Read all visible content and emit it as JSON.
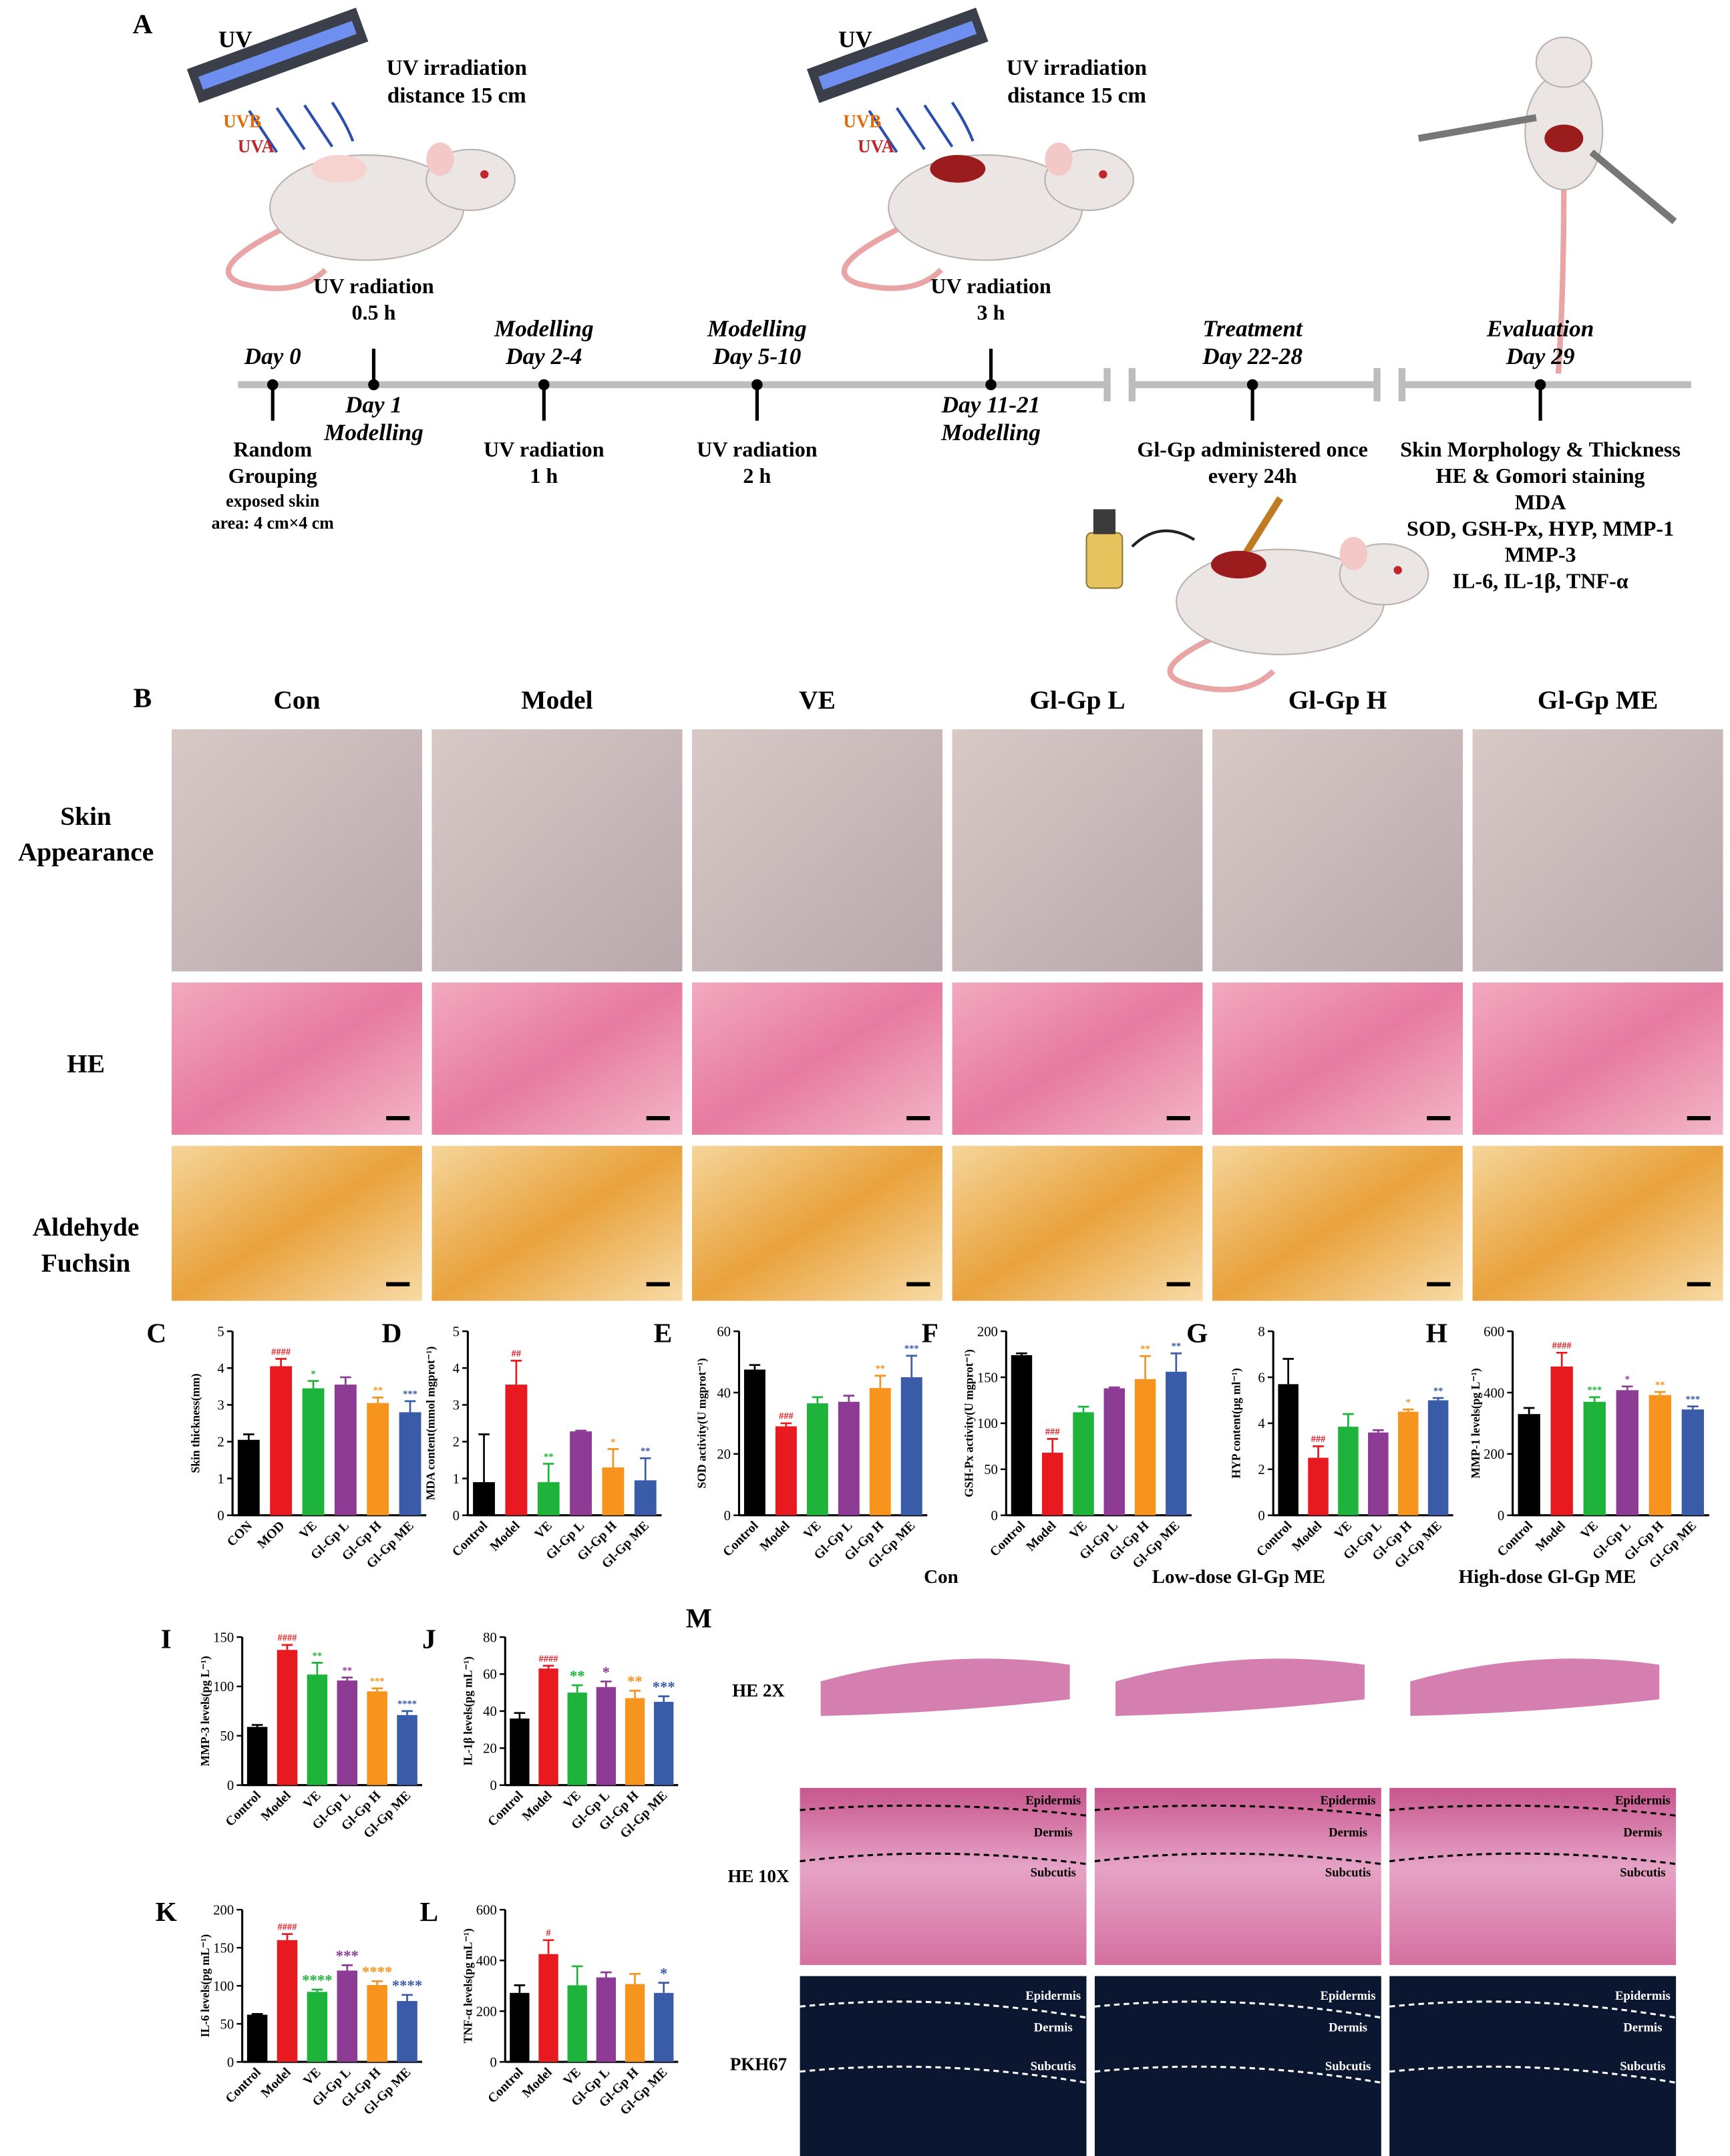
{
  "panel_a": {
    "label": "A",
    "lamps": [
      {
        "name": "UV",
        "bands": [
          "UVB",
          "UVA"
        ],
        "note": [
          "UV irradiation",
          "distance 15 cm"
        ]
      },
      {
        "name": "UV",
        "bands": [
          "UVB",
          "UVA"
        ],
        "note": [
          "UV irradiation",
          "distance 15 cm"
        ]
      }
    ],
    "events": [
      {
        "phase": [
          "Day 0"
        ],
        "detail": [
          "Random",
          "Grouping"
        ],
        "note": [
          "exposed skin",
          "area: 4 cm×4 cm"
        ]
      },
      {
        "phase": [
          "Day 1",
          "Modelling"
        ],
        "detail": [
          "UV radiation",
          "0.5 h"
        ]
      },
      {
        "phase": [
          "Modelling",
          "Day 2-4"
        ],
        "detail": [
          "UV radiation",
          "1 h"
        ]
      },
      {
        "phase": [
          "Modelling",
          "Day 5-10"
        ],
        "detail": [
          "UV radiation",
          "2 h"
        ]
      },
      {
        "phase": [
          "Day 11-21",
          "Modelling"
        ],
        "detail": [
          "UV radiation",
          "3 h"
        ]
      },
      {
        "phase": [
          "Treatment",
          "Day 22-28"
        ],
        "detail": [
          "Gl-Gp administered once",
          "every 24h"
        ]
      },
      {
        "phase": [
          "Evaluation",
          "Day 29"
        ],
        "detail": [
          "Skin Morphology & Thickness",
          "HE & Gomori staining",
          "MDA",
          "SOD, GSH-Px, HYP, MMP-1",
          "MMP-3",
          "IL-6, IL-1β, TNF-α"
        ]
      }
    ]
  },
  "panel_b": {
    "label": "B",
    "groups": [
      "Con",
      "Model",
      "VE",
      "Gl-Gp L",
      "Gl-Gp H",
      "Gl-Gp ME"
    ],
    "rows": [
      [
        "Skin",
        "Appearance"
      ],
      [
        "HE"
      ],
      [
        "Aldehyde",
        "Fuchsin"
      ]
    ]
  },
  "panel_m": {
    "label": "M",
    "columns": [
      "Con",
      "Low-dose Gl-Gp ME",
      "High-dose Gl-Gp ME"
    ],
    "rows": [
      "HE 2X",
      "HE 10X",
      "PKH67"
    ],
    "layers": [
      "Epidermis",
      "Dermis",
      "Subcutis"
    ]
  },
  "chart_data": [
    {
      "type": "bar",
      "label": "C",
      "ylabel": "Skin thickness(mm)",
      "categories": [
        "CON",
        "MOD",
        "VE",
        "Gl-Gp L",
        "Gl-Gp H",
        "Gl-Gp ME"
      ],
      "values": [
        2.05,
        4.05,
        3.45,
        3.55,
        3.05,
        2.8
      ],
      "errors": [
        0.15,
        0.2,
        0.2,
        0.2,
        0.15,
        0.3
      ],
      "annotations": [
        null,
        "####",
        "*",
        null,
        "**",
        "***"
      ],
      "colors": [
        "#000000",
        "#e8191f",
        "#1eb33a",
        "#8e3b96",
        "#f7941d",
        "#3a5ba8"
      ],
      "ylim": [
        0,
        5
      ],
      "yticks": [
        0,
        1,
        2,
        3,
        4,
        5
      ]
    },
    {
      "type": "bar",
      "label": "D",
      "ylabel": "MDA content(mmol mgprot⁻¹)",
      "categories": [
        "Control",
        "Model",
        "VE",
        "Gl-Gp L",
        "Gl-Gp H",
        "Gl-Gp ME"
      ],
      "values": [
        0.9,
        3.55,
        0.9,
        2.28,
        1.3,
        0.95
      ],
      "errors": [
        1.3,
        0.65,
        0.5,
        0.02,
        0.5,
        0.6
      ],
      "annotations": [
        null,
        "##",
        "**",
        null,
        "*",
        "**"
      ],
      "colors": [
        "#000000",
        "#e8191f",
        "#1eb33a",
        "#8e3b96",
        "#f7941d",
        "#3a5ba8"
      ],
      "ylim": [
        0,
        5
      ],
      "yticks": [
        0,
        1,
        2,
        3,
        4,
        5
      ]
    },
    {
      "type": "bar",
      "label": "E",
      "ylabel": "SOD activity(U mgprot⁻¹)",
      "categories": [
        "Control",
        "Model",
        "VE",
        "Gl-Gp L",
        "Gl-Gp H",
        "Gl-Gp ME"
      ],
      "values": [
        47.5,
        29,
        36.5,
        37,
        41.5,
        45
      ],
      "errors": [
        1.5,
        1,
        2,
        2,
        4,
        7
      ],
      "annotations": [
        null,
        "###",
        null,
        null,
        "**",
        "***"
      ],
      "colors": [
        "#000000",
        "#e8191f",
        "#1eb33a",
        "#8e3b96",
        "#f7941d",
        "#3a5ba8"
      ],
      "ylim": [
        0,
        60
      ],
      "yticks": [
        0,
        20,
        40,
        60
      ]
    },
    {
      "type": "bar",
      "label": "F",
      "ylabel": "GSH-Px activity(U mgprot⁻¹)",
      "categories": [
        "Control",
        "Model",
        "VE",
        "Gl-Gp L",
        "Gl-Gp H",
        "Gl-Gp ME"
      ],
      "values": [
        174,
        68,
        112,
        138,
        148,
        156
      ],
      "errors": [
        2,
        15,
        6,
        1,
        25,
        20
      ],
      "annotations": [
        null,
        "###",
        null,
        null,
        "**",
        "**"
      ],
      "colors": [
        "#000000",
        "#e8191f",
        "#1eb33a",
        "#8e3b96",
        "#f7941d",
        "#3a5ba8"
      ],
      "ylim": [
        0,
        200
      ],
      "yticks": [
        0,
        50,
        100,
        150,
        200
      ]
    },
    {
      "type": "bar",
      "label": "G",
      "ylabel": "HYP content(μg ml⁻¹)",
      "categories": [
        "Control",
        "Model",
        "VE",
        "Gl-Gp L",
        "Gl-Gp H",
        "Gl-Gp ME"
      ],
      "values": [
        5.7,
        2.5,
        3.85,
        3.6,
        4.5,
        5.0
      ],
      "errors": [
        1.1,
        0.5,
        0.55,
        0.1,
        0.1,
        0.1
      ],
      "annotations": [
        null,
        "###",
        null,
        null,
        "*",
        "**"
      ],
      "colors": [
        "#000000",
        "#e8191f",
        "#1eb33a",
        "#8e3b96",
        "#f7941d",
        "#3a5ba8"
      ],
      "ylim": [
        0,
        8
      ],
      "yticks": [
        0,
        2,
        4,
        6,
        8
      ]
    },
    {
      "type": "bar",
      "label": "H",
      "ylabel": "MMP-1 levels(pg L⁻¹)",
      "categories": [
        "Control",
        "Model",
        "VE",
        "Gl-Gp L",
        "Gl-Gp H",
        "Gl-Gp ME"
      ],
      "values": [
        330,
        485,
        370,
        408,
        392,
        345
      ],
      "errors": [
        20,
        45,
        15,
        12,
        10,
        10
      ],
      "annotations": [
        null,
        "####",
        "***",
        "*",
        "**",
        "***"
      ],
      "colors": [
        "#000000",
        "#e8191f",
        "#1eb33a",
        "#8e3b96",
        "#f7941d",
        "#3a5ba8"
      ],
      "ylim": [
        0,
        600
      ],
      "yticks": [
        0,
        200,
        400,
        600
      ]
    },
    {
      "type": "bar",
      "label": "I",
      "ylabel": "MMP-3 levels(pg L⁻¹)",
      "categories": [
        "Control",
        "Model",
        "VE",
        "Gl-Gp L",
        "Gl-Gp H",
        "Gl-Gp ME"
      ],
      "values": [
        59,
        137,
        112,
        106,
        95,
        71
      ],
      "errors": [
        2,
        5,
        12,
        3,
        3,
        4
      ],
      "annotations": [
        null,
        "####",
        "**",
        "**",
        "***",
        "****"
      ],
      "colors": [
        "#000000",
        "#e8191f",
        "#1eb33a",
        "#8e3b96",
        "#f7941d",
        "#3a5ba8"
      ],
      "ylim": [
        0,
        150
      ],
      "yticks": [
        0,
        50,
        100,
        150
      ]
    },
    {
      "type": "bar",
      "label": "J",
      "ylabel": "IL-1β levels(pg mL⁻¹)",
      "categories": [
        "Control",
        "Model",
        "VE",
        "Gl-Gp L",
        "Gl-Gp H",
        "Gl-Gp ME"
      ],
      "values": [
        36,
        63,
        50,
        53,
        47,
        45
      ],
      "errors": [
        3,
        1.5,
        4,
        3,
        4,
        3
      ],
      "annotations": [
        null,
        "####",
        "**",
        "*",
        "**",
        "***"
      ],
      "colors": [
        "#000000",
        "#e8191f",
        "#1eb33a",
        "#8e3b96",
        "#f7941d",
        "#3a5ba8"
      ],
      "ylim": [
        0,
        80
      ],
      "yticks": [
        0,
        20,
        40,
        60,
        80
      ]
    },
    {
      "type": "bar",
      "label": "K",
      "ylabel": "IL-6 levels(pg mL⁻¹)",
      "categories": [
        "Control",
        "Model",
        "VE",
        "Gl-Gp L",
        "Gl-Gp H",
        "Gl-Gp ME"
      ],
      "values": [
        62,
        160,
        92,
        120,
        101,
        80
      ],
      "errors": [
        1,
        8,
        3,
        7,
        5,
        8
      ],
      "annotations": [
        null,
        "####",
        "****",
        "***",
        "****",
        "****"
      ],
      "colors": [
        "#000000",
        "#e8191f",
        "#1eb33a",
        "#8e3b96",
        "#f7941d",
        "#3a5ba8"
      ],
      "ylim": [
        0,
        200
      ],
      "yticks": [
        0,
        50,
        100,
        150,
        200
      ]
    },
    {
      "type": "bar",
      "label": "L",
      "ylabel": "TNF-α levels(pg mL⁻¹)",
      "categories": [
        "Control",
        "Model",
        "VE",
        "Gl-Gp L",
        "Gl-Gp H",
        "Gl-Gp ME"
      ],
      "values": [
        272,
        425,
        302,
        333,
        307,
        272
      ],
      "errors": [
        30,
        55,
        75,
        20,
        40,
        40
      ],
      "annotations": [
        null,
        "#",
        null,
        null,
        null,
        "*"
      ],
      "colors": [
        "#000000",
        "#e8191f",
        "#1eb33a",
        "#8e3b96",
        "#f7941d",
        "#3a5ba8"
      ],
      "ylim": [
        0,
        600
      ],
      "yticks": [
        0,
        200,
        400,
        600
      ]
    }
  ]
}
